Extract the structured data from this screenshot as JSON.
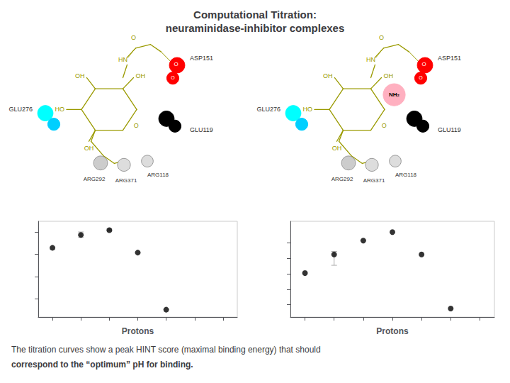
{
  "title": "Computational Titration:\nneuraminidase-inhibitor complexes",
  "annotations": [
    "The titration curves show a peak HINT score (maximal binding energy) that should",
    "correspond to the “optimum” pH for binding."
  ],
  "chart_data": [
    {
      "type": "scatter",
      "xlabel": "Protons",
      "x": [
        0,
        1,
        2,
        3,
        4
      ],
      "values": [
        4380,
        4730,
        4860,
        4250,
        2700
      ],
      "yerr_lo": [
        0,
        60,
        20,
        0,
        0
      ],
      "yerr_hi": [
        0,
        80,
        30,
        0,
        0
      ],
      "color": "black",
      "xlim": [
        -0.5,
        6.5
      ],
      "xticks": [
        0,
        1,
        2,
        3,
        4,
        5,
        6
      ],
      "ylim": [
        2500,
        5100
      ],
      "yticks": [
        3000,
        3600,
        4200,
        4800
      ],
      "grid": false,
      "tick_labels": false,
      "annotations": [
        "O",
        "OH",
        "OH",
        "HO",
        "OH",
        "HN",
        "O",
        "O",
        "O",
        "ASP151",
        "GLU119",
        "GLU276",
        "ARG292",
        "ARG371",
        "ARG118"
      ]
    },
    {
      "type": "scatter",
      "xlabel": "Protons",
      "x": [
        0,
        1,
        2,
        3,
        4,
        5
      ],
      "values": [
        6050,
        7250,
        8150,
        8700,
        7250,
        3750
      ],
      "yerr_lo": [
        0,
        700,
        0,
        0,
        0,
        0
      ],
      "yerr_hi": [
        0,
        200,
        0,
        0,
        0,
        0
      ],
      "color": "black",
      "xlim": [
        -0.5,
        6.5
      ],
      "xticks": [
        0,
        1,
        2,
        3,
        4,
        5,
        6
      ],
      "ylim": [
        3200,
        9400
      ],
      "yticks": [
        4000,
        5000,
        6000,
        7000,
        8000
      ],
      "grid": false,
      "tick_labels": false,
      "annotations": [
        "O",
        "OH",
        "OH",
        "HO",
        "OH",
        "HN",
        "O",
        "O",
        "O",
        "ASP151",
        "GLU119",
        "GLU276",
        "ARG292",
        "ARG371",
        "ARG118",
        "NH₂"
      ]
    }
  ]
}
